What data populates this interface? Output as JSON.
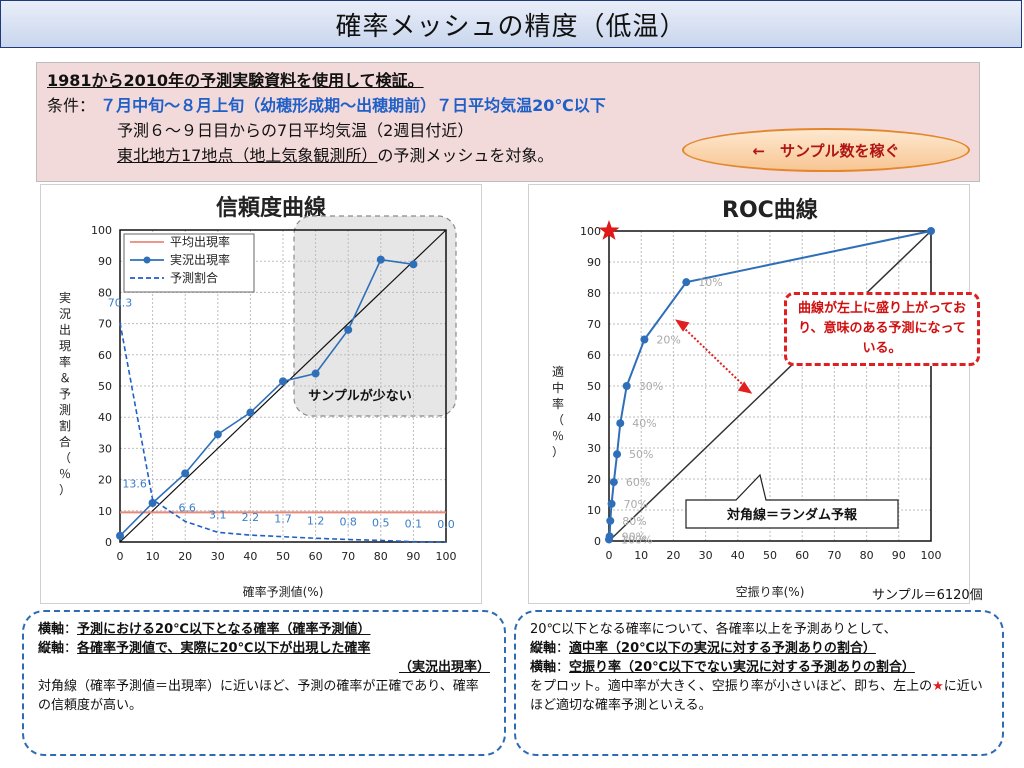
{
  "title": "確率メッシュの精度（低温）",
  "conditions": {
    "line1": "1981から2010年の予測実験資料を使用して検証。",
    "label": "条件：",
    "line2": "７月中旬～８月上旬（幼穂形成期～出穂期前）７日平均気温20℃以下",
    "line3": "予測６～９日目からの7日平均気温（2週目付近）",
    "line4_underlined": "東北地方17地点（地上気象観測所）",
    "line4_rest": "の予測メッシュを対象。",
    "oval_text": "←　サンプル数を稼ぐ"
  },
  "reliability": {
    "title": "信頼度曲線",
    "ylabel": "実況出現率＆予測割合（％）",
    "xlabel": "確率予測値(%)",
    "legend": [
      "平均出現率",
      "実況出現率",
      "予測割合"
    ],
    "annotation": "サンプルが少ない"
  },
  "roc": {
    "title": "ROC曲線",
    "ylabel": "適中率（％）",
    "xlabel": "空振り率(%)",
    "callout": "曲線が左上に盛り上がっており、意味のある予測になっている。",
    "diag_label": "対角線＝ランダム予報",
    "sample_note": "サンプル＝6120個"
  },
  "chart_data": [
    {
      "type": "line",
      "title": "信頼度曲線",
      "xlabel": "確率予測値(%)",
      "ylabel": "実況出現率＆予測割合（％）",
      "xlim": [
        0,
        100
      ],
      "ylim": [
        0,
        100
      ],
      "xticks": [
        0,
        10,
        20,
        30,
        40,
        50,
        60,
        70,
        80,
        90,
        100
      ],
      "yticks": [
        0,
        10,
        20,
        30,
        40,
        50,
        60,
        70,
        80,
        90,
        100
      ],
      "grid": true,
      "legend_position": "top-left",
      "series": [
        {
          "name": "平均出現率",
          "x": [
            0,
            100
          ],
          "values": [
            9.5,
            9.5
          ],
          "color": "#e8887a",
          "style": "solid"
        },
        {
          "name": "実況出現率",
          "x": [
            0,
            10,
            20,
            30,
            40,
            50,
            60,
            70,
            80,
            90
          ],
          "values": [
            2,
            12.5,
            22,
            34.5,
            41.5,
            51.5,
            54,
            68,
            90.5,
            89
          ],
          "color": "#2f6fb9",
          "style": "line-marker"
        },
        {
          "name": "予測割合",
          "x": [
            0,
            10,
            20,
            30,
            40,
            50,
            60,
            70,
            80,
            90,
            100
          ],
          "values": [
            70.3,
            13.6,
            6.6,
            3.1,
            2.2,
            1.7,
            1.2,
            0.8,
            0.5,
            0.1,
            0.0
          ],
          "color": "#1f5fc8",
          "style": "dashed"
        }
      ],
      "data_labels": [
        {
          "x": 0,
          "text": "70.3"
        },
        {
          "x": 10,
          "text": "13.6"
        },
        {
          "x": 20,
          "text": "6.6"
        },
        {
          "x": 30,
          "text": "3.1"
        },
        {
          "x": 40,
          "text": "2.2"
        },
        {
          "x": 50,
          "text": "1.7"
        },
        {
          "x": 60,
          "text": "1.2"
        },
        {
          "x": 70,
          "text": "0.8"
        },
        {
          "x": 80,
          "text": "0.5"
        },
        {
          "x": 90,
          "text": "0.1"
        },
        {
          "x": 100,
          "text": "0.0"
        }
      ]
    },
    {
      "type": "line",
      "title": "ROC曲線",
      "xlabel": "空振り率(%)",
      "ylabel": "適中率（％）",
      "xlim": [
        0,
        100
      ],
      "ylim": [
        0,
        100
      ],
      "xticks": [
        0,
        10,
        20,
        30,
        40,
        50,
        60,
        70,
        80,
        90,
        100
      ],
      "yticks": [
        0,
        10,
        20,
        30,
        40,
        50,
        60,
        70,
        80,
        90,
        100
      ],
      "grid": true,
      "series": [
        {
          "name": "",
          "x": [
            0,
            0.2,
            0.4,
            0.8,
            1.5,
            2.5,
            3.5,
            5.5,
            11,
            24,
            100
          ],
          "values": [
            0.5,
            1.5,
            6.5,
            12,
            19,
            28,
            38,
            50,
            65,
            83.5,
            100
          ],
          "color": "#2f6fb9"
        }
      ],
      "point_labels": [
        "100%",
        "90%",
        "80%",
        "70%",
        "60%",
        "50%",
        "40%",
        "30%",
        "20%",
        "10%",
        ""
      ],
      "diagonal": true
    }
  ]
}
